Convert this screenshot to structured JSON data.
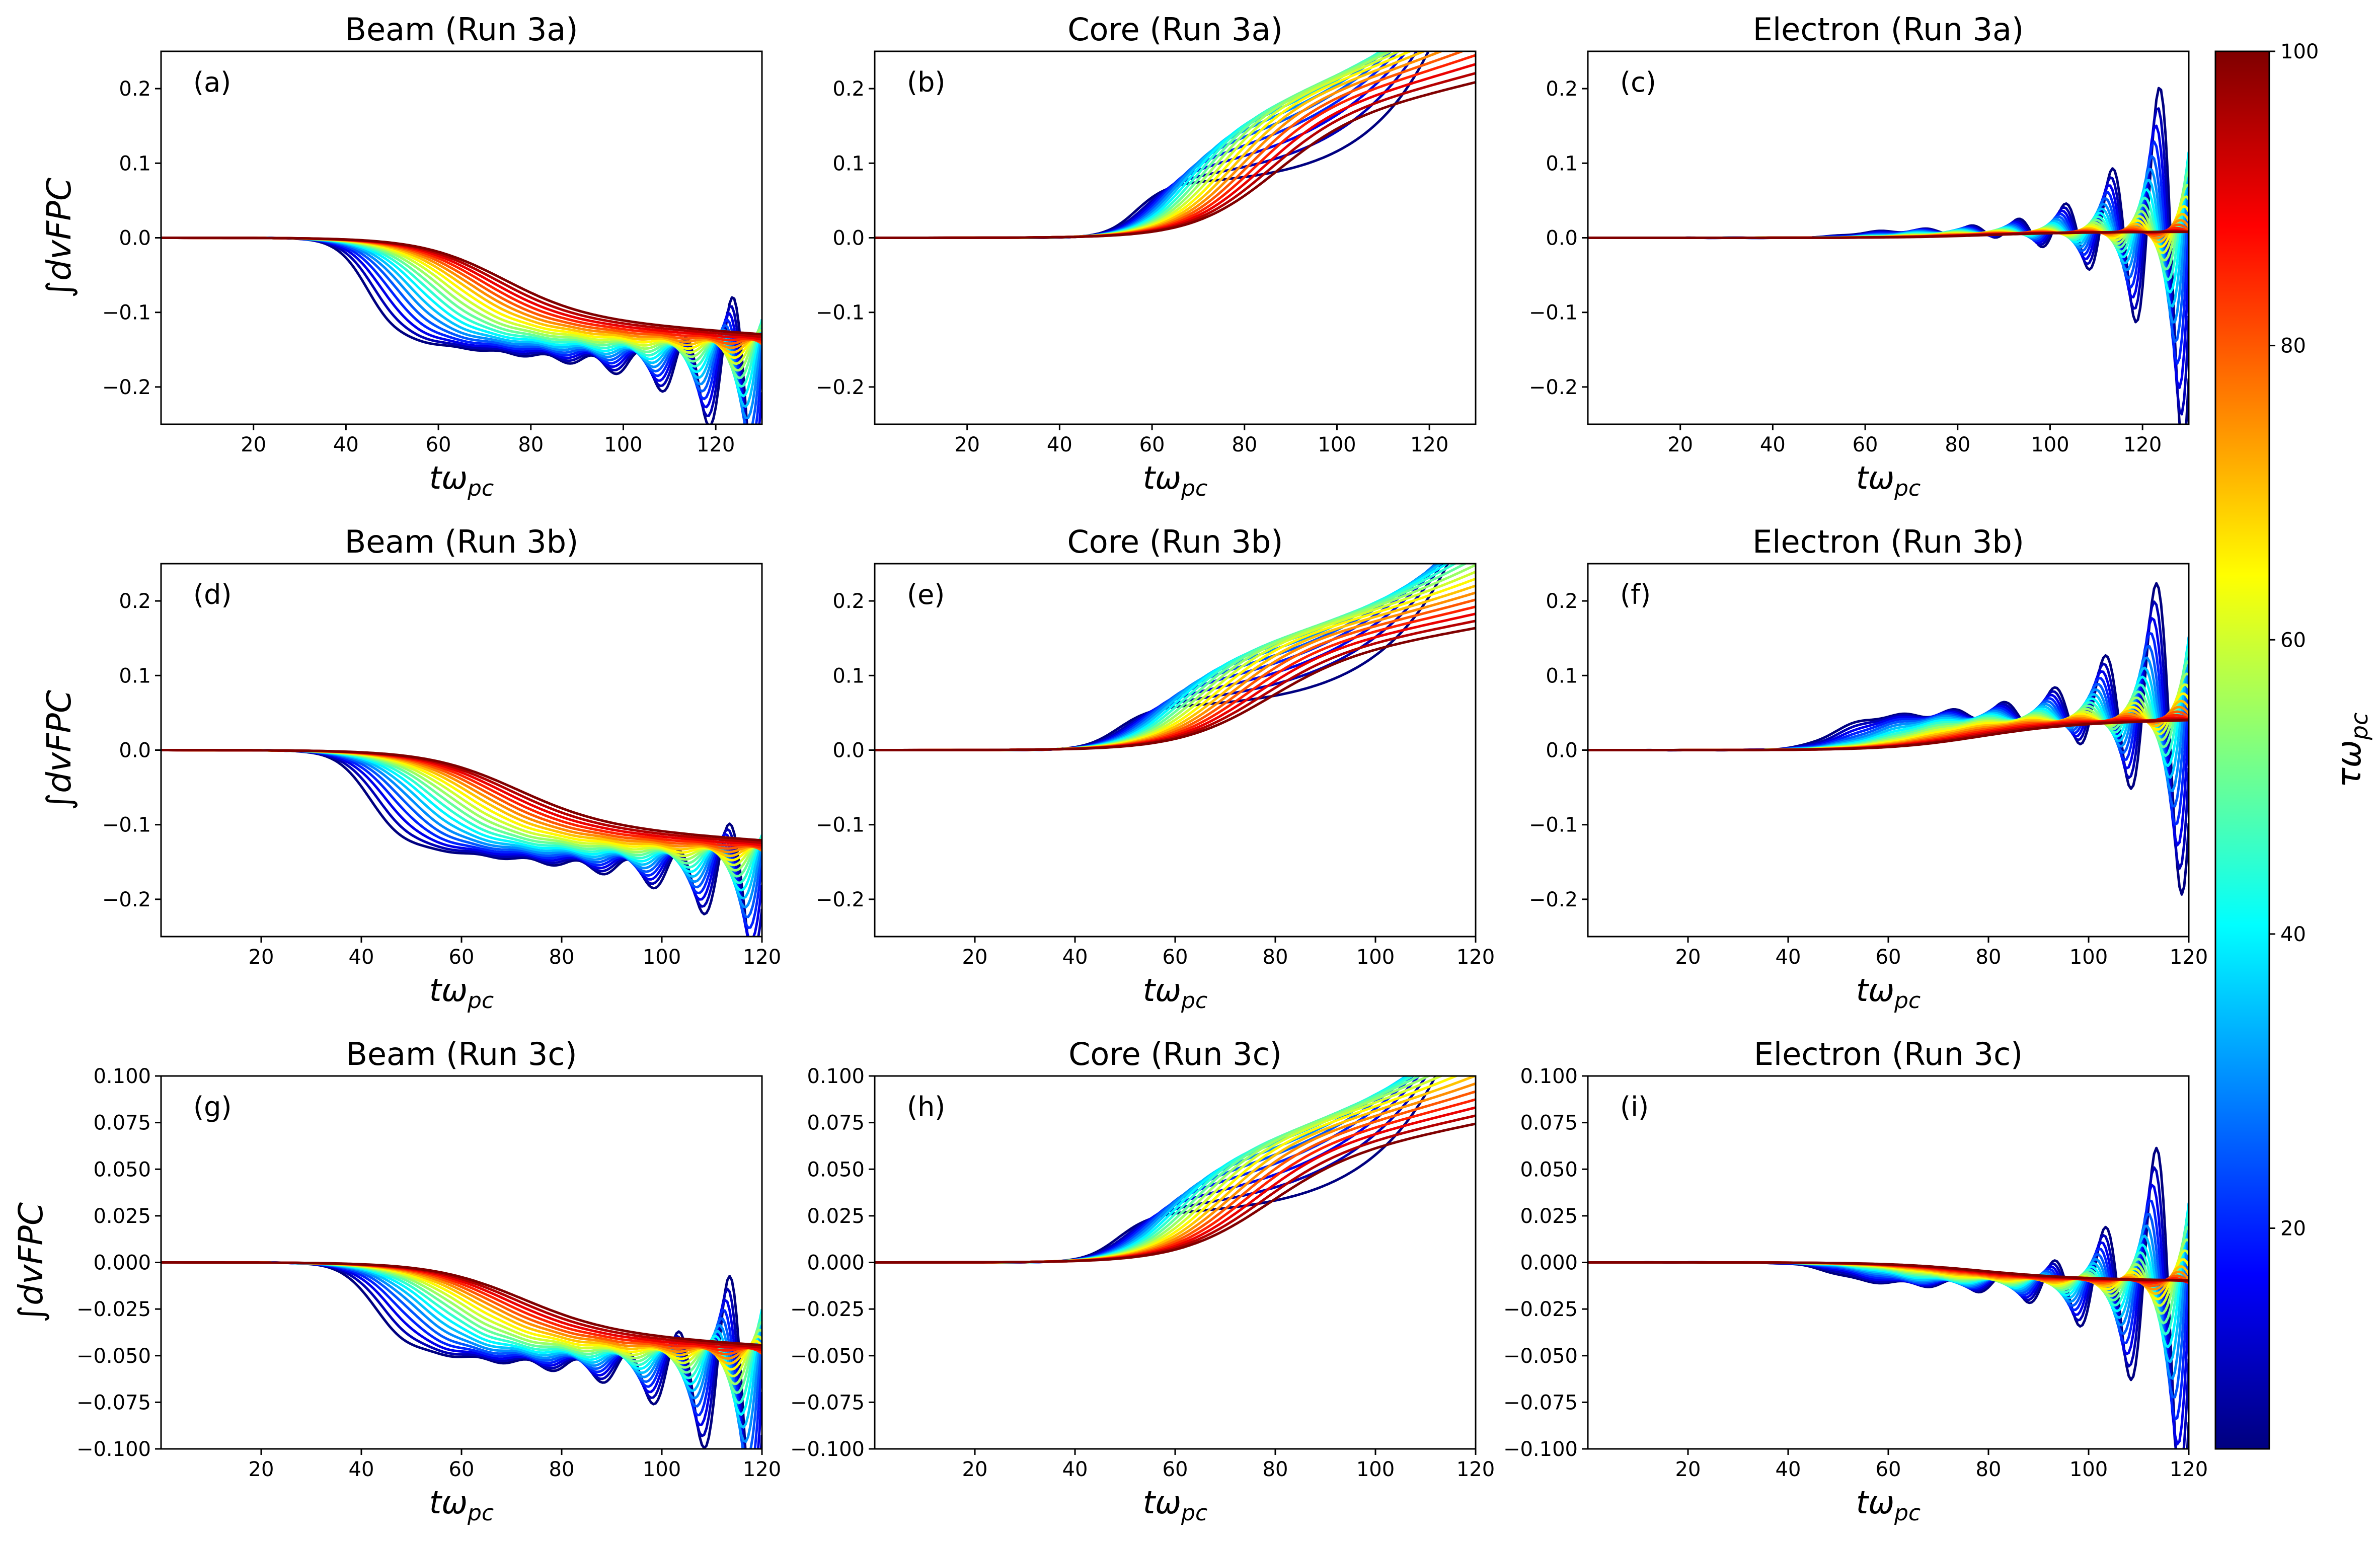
{
  "figure": {
    "colorbar": {
      "label": "τω",
      "label_sub": "pc",
      "min": 5,
      "max": 100,
      "ticks": [
        20,
        40,
        60,
        80,
        100
      ],
      "colormap": "jet"
    },
    "series_tau": [
      5,
      10,
      15,
      20,
      25,
      30,
      35,
      40,
      45,
      50,
      55,
      60,
      65,
      70,
      75,
      80,
      85,
      90,
      95,
      100
    ]
  },
  "chart_data": [
    {
      "type": "line",
      "title": "Beam (Run 3a)",
      "panel_label": "(a)",
      "xlabel": "tω",
      "xlabel_sub": "pc",
      "ylabel": "∫dvFPC",
      "xlim": [
        0,
        130
      ],
      "ylim": [
        -0.25,
        0.25
      ],
      "xticks": [
        20,
        40,
        60,
        80,
        100,
        120
      ],
      "yticks": [
        -0.2,
        -0.1,
        0.0,
        0.1,
        0.2
      ],
      "ytick_decimals": 1,
      "species": "beam",
      "onset_t": 68,
      "end_value": -0.16,
      "envelope_growth": 0.9,
      "oscillation_amplitude": 0.14
    },
    {
      "type": "line",
      "title": "Core (Run 3a)",
      "panel_label": "(b)",
      "xlabel": "tω",
      "xlabel_sub": "pc",
      "ylabel": "",
      "xlim": [
        0,
        130
      ],
      "ylim": [
        -0.25,
        0.25
      ],
      "xticks": [
        20,
        40,
        60,
        80,
        100,
        120
      ],
      "yticks": [
        -0.2,
        -0.1,
        0.0,
        0.1,
        0.2
      ],
      "ytick_decimals": 1,
      "species": "core",
      "onset_t": 80,
      "end_value": 0.14,
      "envelope_growth": 0.9,
      "oscillation_amplitude": 0.0
    },
    {
      "type": "line",
      "title": "Electron (Run 3a)",
      "panel_label": "(c)",
      "xlabel": "tω",
      "xlabel_sub": "pc",
      "ylabel": "",
      "xlim": [
        0,
        130
      ],
      "ylim": [
        -0.25,
        0.25
      ],
      "xticks": [
        20,
        40,
        60,
        80,
        100,
        120
      ],
      "yticks": [
        -0.2,
        -0.1,
        0.0,
        0.1,
        0.2
      ],
      "ytick_decimals": 1,
      "species": "electron",
      "onset_t": 80,
      "end_value": 0.01,
      "envelope_growth": 0.9,
      "oscillation_amplitude": 0.25
    },
    {
      "type": "line",
      "title": "Beam (Run 3b)",
      "panel_label": "(d)",
      "xlabel": "tω",
      "xlabel_sub": "pc",
      "ylabel": "∫dvFPC",
      "xlim": [
        0,
        120
      ],
      "ylim": [
        -0.25,
        0.25
      ],
      "xticks": [
        20,
        40,
        60,
        80,
        100,
        120
      ],
      "yticks": [
        -0.2,
        -0.1,
        0.0,
        0.1,
        0.2
      ],
      "ytick_decimals": 1,
      "species": "beam",
      "onset_t": 65,
      "end_value": -0.15,
      "envelope_growth": 0.9,
      "oscillation_amplitude": 0.1
    },
    {
      "type": "line",
      "title": "Core (Run 3b)",
      "panel_label": "(e)",
      "xlabel": "tω",
      "xlabel_sub": "pc",
      "ylabel": "",
      "xlim": [
        0,
        120
      ],
      "ylim": [
        -0.25,
        0.25
      ],
      "xticks": [
        20,
        40,
        60,
        80,
        100,
        120
      ],
      "yticks": [
        -0.2,
        -0.1,
        0.0,
        0.1,
        0.2
      ],
      "ytick_decimals": 1,
      "species": "core",
      "onset_t": 72,
      "end_value": 0.11,
      "envelope_growth": 0.9,
      "oscillation_amplitude": 0.0
    },
    {
      "type": "line",
      "title": "Electron (Run 3b)",
      "panel_label": "(f)",
      "xlabel": "tω",
      "xlabel_sub": "pc",
      "ylabel": "",
      "xlim": [
        0,
        120
      ],
      "ylim": [
        -0.25,
        0.25
      ],
      "xticks": [
        20,
        40,
        60,
        80,
        100,
        120
      ],
      "yticks": [
        -0.2,
        -0.1,
        0.0,
        0.1,
        0.2
      ],
      "ytick_decimals": 1,
      "species": "electron",
      "onset_t": 72,
      "end_value": 0.05,
      "envelope_growth": 0.9,
      "oscillation_amplitude": 0.22
    },
    {
      "type": "line",
      "title": "Beam (Run 3c)",
      "panel_label": "(g)",
      "xlabel": "tω",
      "xlabel_sub": "pc",
      "ylabel": "∫dvFPC",
      "xlim": [
        0,
        120
      ],
      "ylim": [
        -0.1,
        0.1
      ],
      "xticks": [
        20,
        40,
        60,
        80,
        100,
        120
      ],
      "yticks": [
        -0.1,
        -0.075,
        -0.05,
        -0.025,
        0.0,
        0.025,
        0.05,
        0.075,
        0.1
      ],
      "ytick_decimals": 3,
      "species": "beam",
      "onset_t": 66,
      "end_value": -0.055,
      "envelope_growth": 0.9,
      "oscillation_amplitude": 0.075
    },
    {
      "type": "line",
      "title": "Core (Run 3c)",
      "panel_label": "(h)",
      "xlabel": "tω",
      "xlabel_sub": "pc",
      "ylabel": "",
      "xlim": [
        0,
        120
      ],
      "ylim": [
        -0.1,
        0.1
      ],
      "xticks": [
        20,
        40,
        60,
        80,
        100,
        120
      ],
      "yticks": [
        -0.1,
        -0.075,
        -0.05,
        -0.025,
        0.0,
        0.025,
        0.05,
        0.075,
        0.1
      ],
      "ytick_decimals": 3,
      "species": "core",
      "onset_t": 72,
      "end_value": 0.05,
      "envelope_growth": 0.9,
      "oscillation_amplitude": 0.0
    },
    {
      "type": "line",
      "title": "Electron (Run 3c)",
      "panel_label": "(i)",
      "xlabel": "tω",
      "xlabel_sub": "pc",
      "ylabel": "",
      "xlim": [
        0,
        120
      ],
      "ylim": [
        -0.1,
        0.1
      ],
      "xticks": [
        20,
        40,
        60,
        80,
        100,
        120
      ],
      "yticks": [
        -0.1,
        -0.075,
        -0.05,
        -0.025,
        0.0,
        0.025,
        0.05,
        0.075,
        0.1
      ],
      "ytick_decimals": 3,
      "species": "electron",
      "onset_t": 72,
      "end_value": -0.012,
      "envelope_growth": 0.9,
      "oscillation_amplitude": 0.1
    }
  ]
}
